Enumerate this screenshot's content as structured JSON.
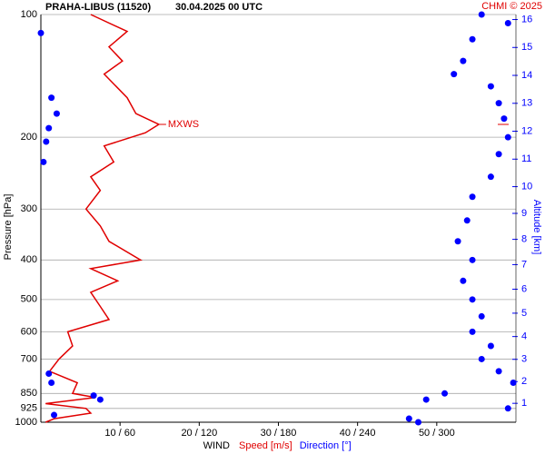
{
  "chart_data": {
    "type": "line",
    "title": "PRAHA-LIBUS (11520)",
    "subtitle": "30.04.2025 00 UTC",
    "credit": "CHMI © 2025",
    "ylabel": "Pressure [hPa]",
    "y2label": "Altitude [km]",
    "xlabel": "WIND",
    "annotation": "MXWS",
    "ylim": [
      100,
      1000
    ],
    "log_y": true,
    "y_inverted": true,
    "yticks": [
      100,
      200,
      300,
      400,
      500,
      600,
      700,
      850,
      925,
      1000
    ],
    "y2ticks": [
      1,
      2,
      3,
      4,
      5,
      6,
      7,
      8,
      9,
      10,
      11,
      12,
      13,
      14,
      15,
      16
    ],
    "xlim": [
      0,
      60
    ],
    "x2lim": [
      0,
      360
    ],
    "xticks": [
      {
        "value": 10,
        "label": "10 / 60"
      },
      {
        "value": 20,
        "label": "20 / 120"
      },
      {
        "value": 30,
        "label": "30 / 180"
      },
      {
        "value": 40,
        "label": "40 / 240"
      },
      {
        "value": 50,
        "label": "50 / 300"
      }
    ],
    "grid": true,
    "series": [
      {
        "name": "Speed [m/s]",
        "color": "#e00000",
        "style": "line",
        "y": [
          100,
          110,
          120,
          130,
          140,
          160,
          175,
          186,
          195,
          210,
          230,
          250,
          270,
          300,
          330,
          360,
          400,
          420,
          450,
          480,
          520,
          560,
          600,
          650,
          700,
          750,
          800,
          850,
          870,
          900,
          925,
          950,
          980,
          1000
        ],
        "values": [
          6.3,
          10.9,
          8.6,
          10.3,
          8.0,
          10.9,
          12.0,
          14.9,
          13.2,
          8.0,
          9.2,
          6.3,
          7.5,
          5.7,
          7.5,
          8.6,
          12.6,
          6.3,
          9.7,
          6.3,
          7.5,
          8.6,
          3.4,
          4.0,
          2.3,
          1.1,
          4.6,
          4.0,
          6.9,
          0.6,
          5.7,
          6.3,
          1.7,
          0.6
        ]
      },
      {
        "name": "Direction [°]",
        "color": "#0000ff",
        "style": "dots",
        "axis": "x2",
        "y": [
          100,
          105,
          111,
          115,
          130,
          140,
          150,
          160,
          165,
          175,
          180,
          190,
          200,
          205,
          220,
          230,
          250,
          280,
          320,
          360,
          400,
          450,
          500,
          550,
          600,
          650,
          700,
          750,
          760,
          800,
          800,
          850,
          860,
          880,
          880,
          925,
          960,
          980,
          1000
        ],
        "values": [
          334,
          354,
          0,
          327,
          320,
          313,
          341,
          8,
          347,
          12,
          351,
          6,
          354,
          4,
          347,
          2,
          341,
          327,
          323,
          316,
          327,
          320,
          327,
          334,
          327,
          341,
          334,
          347,
          6,
          358,
          8,
          306,
          40,
          292,
          45,
          354,
          10,
          279,
          286
        ]
      }
    ]
  }
}
